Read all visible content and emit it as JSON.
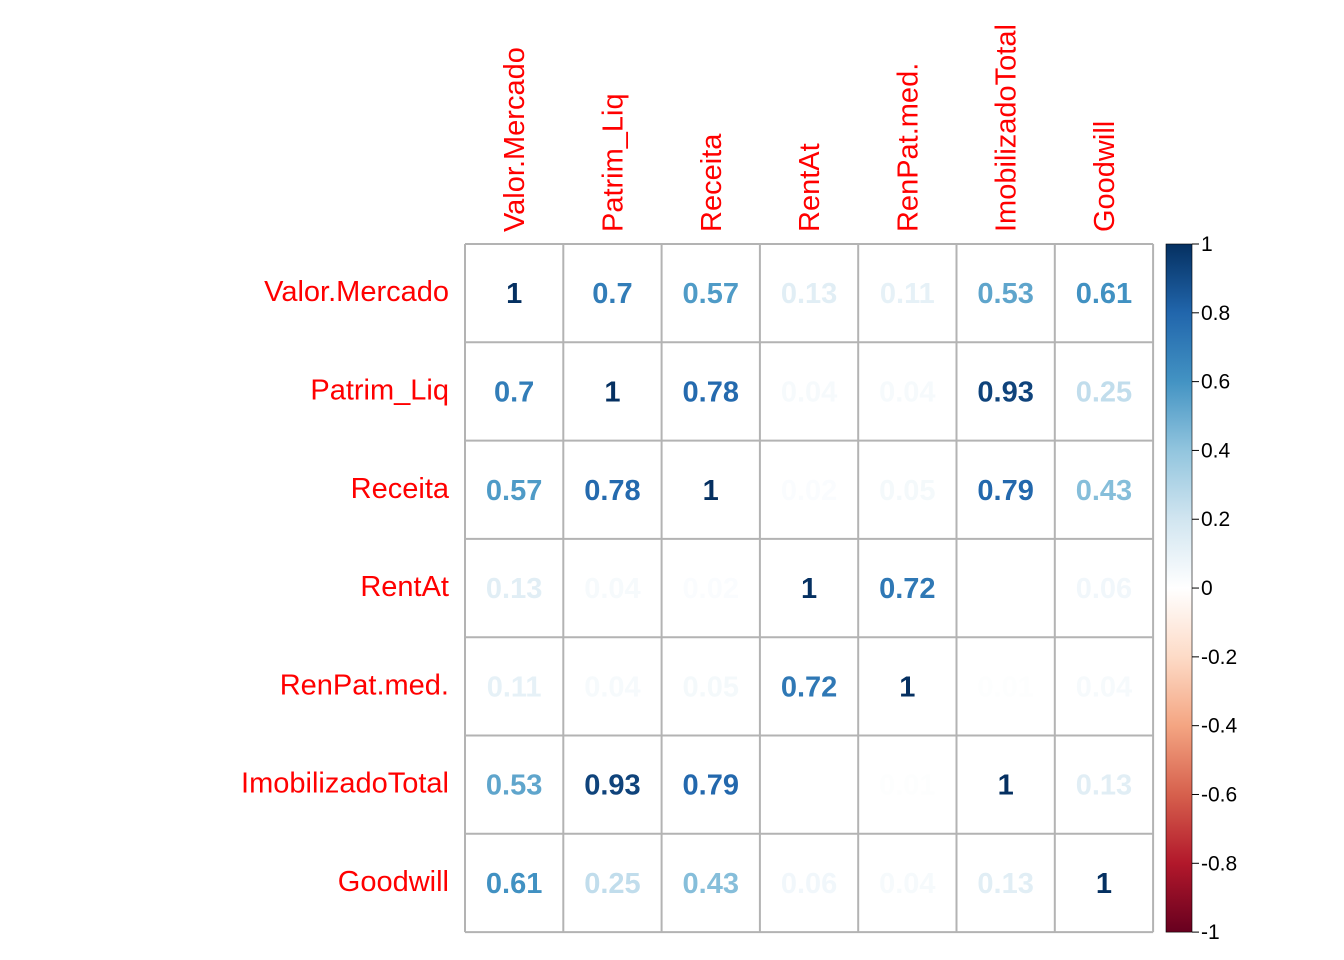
{
  "chart_data": {
    "type": "heatmap",
    "variables": [
      "Valor.Mercado",
      "Patrim_Liq",
      "Receita",
      "RentAt",
      "RenPat.med.",
      "ImobilizadoTotal",
      "Goodwill"
    ],
    "matrix": [
      [
        1,
        0.7,
        0.57,
        0.13,
        0.11,
        0.53,
        0.61
      ],
      [
        0.7,
        1,
        0.78,
        0.04,
        0.04,
        0.93,
        0.25
      ],
      [
        0.57,
        0.78,
        1,
        0.02,
        0.05,
        0.79,
        0.43
      ],
      [
        0.13,
        0.04,
        0.02,
        1,
        0.72,
        0,
        0.06
      ],
      [
        0.11,
        0.04,
        0.05,
        0.72,
        1,
        0.01,
        0.04
      ],
      [
        0.53,
        0.93,
        0.79,
        0,
        0.01,
        1,
        0.13
      ],
      [
        0.61,
        0.25,
        0.43,
        0.06,
        0.04,
        0.13,
        1
      ]
    ],
    "labels": [
      [
        "1",
        "0.7",
        "0.57",
        "0.13",
        "0.11",
        "0.53",
        "0.61"
      ],
      [
        "0.7",
        "1",
        "0.78",
        "0.04",
        "0.04",
        "0.93",
        "0.25"
      ],
      [
        "0.57",
        "0.78",
        "1",
        "0.02",
        "0.05",
        "0.79",
        "0.43"
      ],
      [
        "0.13",
        "0.04",
        "0.02",
        "1",
        "0.72",
        "0",
        "0.06"
      ],
      [
        "0.11",
        "0.04",
        "0.05",
        "0.72",
        "1",
        "0.01",
        "0.04"
      ],
      [
        "0.53",
        "0.93",
        "0.79",
        "0",
        "0.01",
        "1",
        "0.13"
      ],
      [
        "0.61",
        "0.25",
        "0.43",
        "0.06",
        "0.04",
        "0.13",
        "1"
      ]
    ],
    "colorbar": {
      "range": [
        -1,
        1
      ],
      "ticks": [
        "1",
        "0.8",
        "0.6",
        "0.4",
        "0.2",
        "0",
        "-0.2",
        "-0.4",
        "-0.6",
        "-0.8",
        "-1"
      ]
    },
    "palette": [
      "#67001F",
      "#B2182B",
      "#D6604D",
      "#F4A582",
      "#FDDBC7",
      "#FFFFFF",
      "#D1E5F0",
      "#92C5DE",
      "#4393C3",
      "#2166AC",
      "#053061"
    ],
    "label_color": "#FF0000",
    "grid_color": "#B3B3B3",
    "grid": true,
    "legend": "right"
  }
}
